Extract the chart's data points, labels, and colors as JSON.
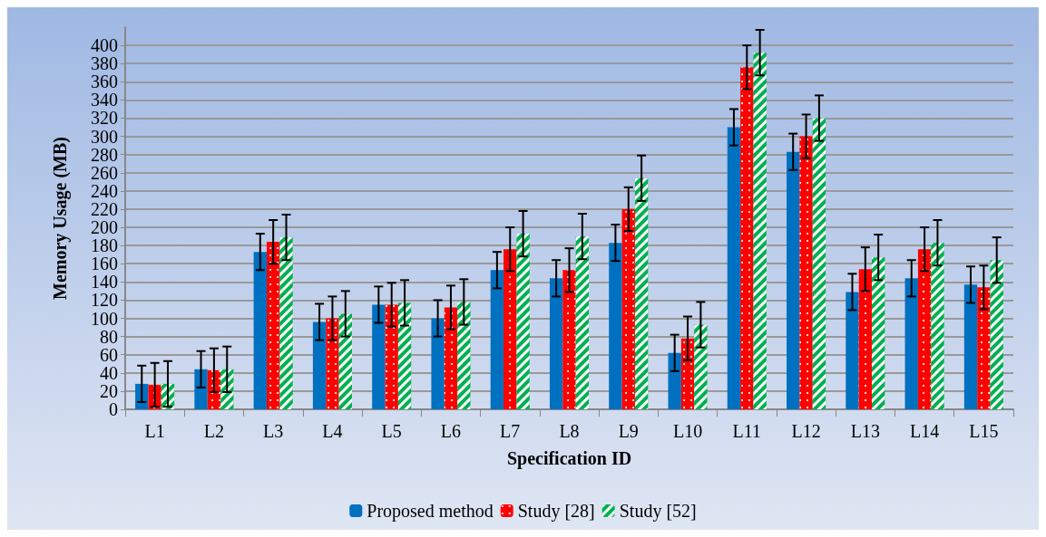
{
  "chart_data": {
    "type": "bar",
    "xlabel": "Specification ID",
    "ylabel": "Memory Usage (MB)",
    "categories": [
      "L1",
      "L2",
      "L3",
      "L4",
      "L5",
      "L6",
      "L7",
      "L8",
      "L9",
      "L10",
      "L11",
      "L12",
      "L13",
      "L14",
      "L15"
    ],
    "series": [
      {
        "name": "Proposed method",
        "color": "#0070c0",
        "values": [
          28,
          44,
          173,
          96,
          115,
          100,
          153,
          144,
          183,
          62,
          310,
          283,
          129,
          144,
          137
        ],
        "errors": [
          20,
          20,
          20,
          20,
          20,
          20,
          20,
          20,
          20,
          20,
          20,
          20,
          20,
          20,
          20
        ]
      },
      {
        "name": "Study [28]",
        "color": "#ff0000",
        "values": [
          27,
          43,
          184,
          100,
          115,
          112,
          176,
          153,
          220,
          78,
          376,
          300,
          154,
          176,
          134
        ],
        "errors": [
          24,
          24,
          24,
          24,
          24,
          24,
          24,
          24,
          24,
          24,
          24,
          24,
          24,
          24,
          24
        ]
      },
      {
        "name": "Study [52]",
        "color": "#00b050",
        "values": [
          28,
          44,
          189,
          105,
          117,
          118,
          193,
          190,
          254,
          93,
          392,
          320,
          167,
          183,
          164
        ],
        "errors": [
          25,
          25,
          25,
          25,
          25,
          25,
          25,
          25,
          25,
          25,
          25,
          25,
          25,
          25,
          25
        ]
      }
    ],
    "ylim": [
      0,
      420
    ],
    "yticks": [
      0,
      20,
      40,
      60,
      80,
      100,
      120,
      140,
      160,
      180,
      200,
      220,
      240,
      260,
      280,
      300,
      320,
      340,
      360,
      380,
      400
    ],
    "grid": "y",
    "legend": "bottom"
  }
}
